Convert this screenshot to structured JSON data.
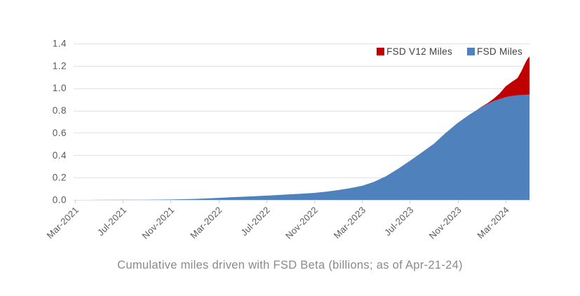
{
  "caption": "Cumulative miles driven with FSD Beta (billions; as of Apr-21-24)",
  "colors": {
    "grid": "#e4e4e4",
    "tick": "#d6d6d6",
    "axis_label": "#595959",
    "legend_text": "#3f3f3f",
    "caption": "#8a8a8a",
    "fsd_v12": "#c00000",
    "fsd": "#4f81bd"
  },
  "chart_data": {
    "type": "area",
    "stacked": true,
    "title": "Cumulative miles driven with FSD Beta (billions; as of Apr-21-24)",
    "xlabel": "",
    "ylabel": "",
    "grid": "horizontal",
    "legend_position": "top-right",
    "x_unit": "months since Mar-2021",
    "xlim": [
      0,
      38
    ],
    "ylim": [
      0,
      1.4
    ],
    "y_tick_values": [
      0,
      0.2,
      0.4,
      0.6,
      0.8,
      1.0,
      1.2,
      1.4
    ],
    "y_tick_labels": [
      "0.0",
      "0.2",
      "0.4",
      "0.6",
      "0.8",
      "1.0",
      "1.2",
      "1.4"
    ],
    "x_tick_positions": [
      0,
      4,
      8,
      12,
      16,
      20,
      24,
      28,
      32,
      36
    ],
    "x_tick_labels": [
      "Mar-2021",
      "Jul-2021",
      "Nov-2021",
      "Mar-2022",
      "Jul-2022",
      "Nov-2022",
      "Mar-2023",
      "Jul-2023",
      "Nov-2023",
      "Mar-2024"
    ],
    "series": [
      {
        "name": "FSD V12 Miles",
        "color": "#c00000",
        "role": "stacked_top",
        "points": [
          [
            33.5,
            0
          ],
          [
            34,
            0.003
          ],
          [
            34.5,
            0.008
          ],
          [
            35,
            0.02
          ],
          [
            35.5,
            0.05
          ],
          [
            36,
            0.095
          ],
          [
            36.5,
            0.125
          ],
          [
            37,
            0.155
          ],
          [
            37.3,
            0.21
          ],
          [
            37.6,
            0.275
          ],
          [
            37.8,
            0.315
          ],
          [
            38,
            0.34
          ]
        ]
      },
      {
        "name": "FSD Miles",
        "color": "#4f81bd",
        "role": "base",
        "points": [
          [
            0,
            0
          ],
          [
            2,
            0.0004
          ],
          [
            4,
            0.001
          ],
          [
            6,
            0.002
          ],
          [
            8,
            0.0035
          ],
          [
            9,
            0.006
          ],
          [
            10,
            0.009
          ],
          [
            11,
            0.013
          ],
          [
            12,
            0.018
          ],
          [
            13,
            0.023
          ],
          [
            14,
            0.028
          ],
          [
            15,
            0.033
          ],
          [
            16,
            0.038
          ],
          [
            17,
            0.044
          ],
          [
            18,
            0.05
          ],
          [
            19,
            0.056
          ],
          [
            20,
            0.063
          ],
          [
            21,
            0.074
          ],
          [
            22,
            0.088
          ],
          [
            23,
            0.105
          ],
          [
            24,
            0.126
          ],
          [
            25,
            0.162
          ],
          [
            26,
            0.212
          ],
          [
            27,
            0.278
          ],
          [
            28,
            0.35
          ],
          [
            29,
            0.425
          ],
          [
            30,
            0.502
          ],
          [
            31,
            0.6
          ],
          [
            32,
            0.69
          ],
          [
            33,
            0.765
          ],
          [
            34,
            0.832
          ],
          [
            35,
            0.885
          ],
          [
            36,
            0.92
          ],
          [
            36.5,
            0.93
          ],
          [
            37,
            0.936
          ],
          [
            37.5,
            0.94
          ],
          [
            38,
            0.943
          ]
        ]
      }
    ]
  }
}
